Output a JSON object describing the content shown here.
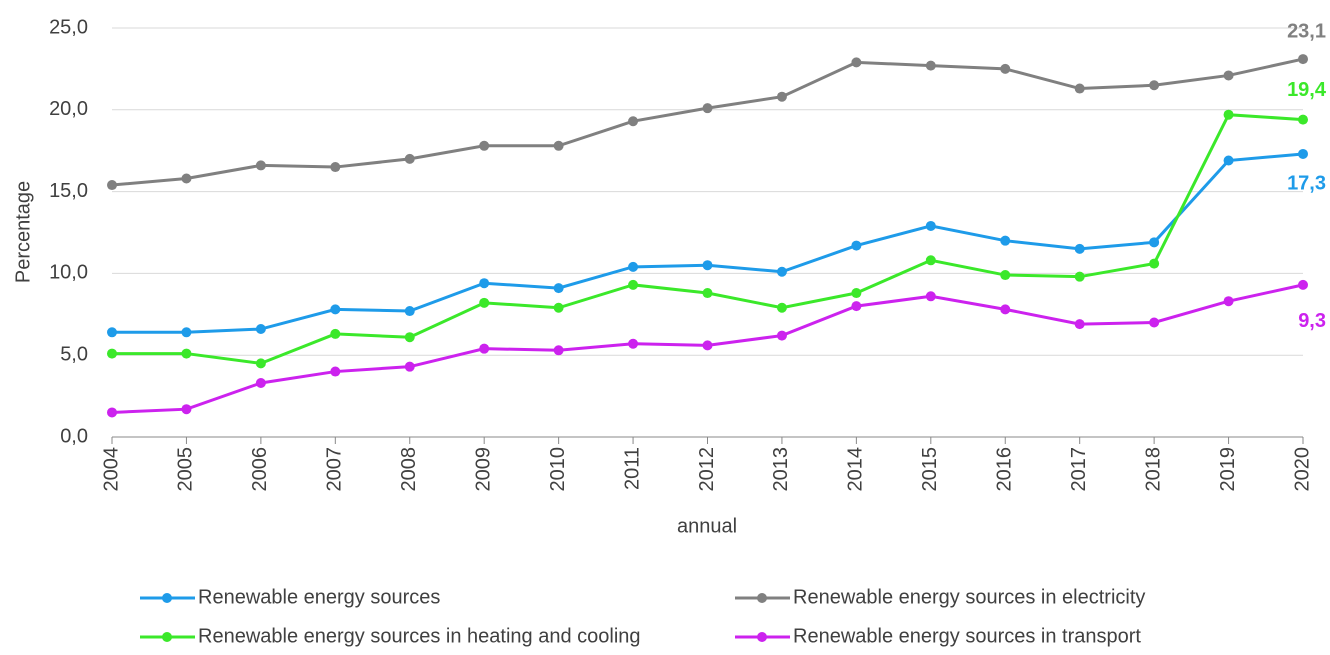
{
  "chart_data": {
    "type": "line",
    "x_label": "annual",
    "y_label": "Percentage",
    "categories": [
      "2004",
      "2005",
      "2006",
      "2007",
      "2008",
      "2009",
      "2010",
      "2011",
      "2012",
      "2013",
      "2014",
      "2015",
      "2016",
      "2017",
      "2018",
      "2019",
      "2020"
    ],
    "ylim": [
      0,
      25
    ],
    "yticks": [
      {
        "value": 0,
        "label": "0,0"
      },
      {
        "value": 5,
        "label": "5,0"
      },
      {
        "value": 10,
        "label": "10,0"
      },
      {
        "value": 15,
        "label": "15,0"
      },
      {
        "value": 20,
        "label": "20,0"
      },
      {
        "value": 25,
        "label": "25,0"
      }
    ],
    "grid": true,
    "series": [
      {
        "name": "Renewable energy sources",
        "color": "#1e9be9",
        "values": [
          6.4,
          6.4,
          6.6,
          7.8,
          7.7,
          9.4,
          9.1,
          10.4,
          10.5,
          10.1,
          11.7,
          12.9,
          12.0,
          11.5,
          11.9,
          16.9,
          17.3
        ],
        "value_labels": [
          null,
          null,
          null,
          null,
          null,
          null,
          null,
          null,
          null,
          null,
          null,
          null,
          null,
          null,
          null,
          null,
          "17,3"
        ]
      },
      {
        "name": "Renewable energy sources in electricity",
        "color": "#808080",
        "values": [
          15.4,
          15.8,
          16.6,
          16.5,
          17.0,
          17.8,
          17.8,
          19.3,
          20.1,
          20.8,
          22.9,
          22.7,
          22.5,
          21.3,
          21.5,
          22.1,
          23.1
        ],
        "value_labels": [
          null,
          null,
          null,
          null,
          null,
          null,
          null,
          null,
          null,
          null,
          null,
          null,
          null,
          null,
          null,
          null,
          "23,1"
        ]
      },
      {
        "name": "Renewable energy sources in heating and cooling",
        "color": "#3be82a",
        "values": [
          5.1,
          5.1,
          4.5,
          6.3,
          6.1,
          8.2,
          7.9,
          9.3,
          8.8,
          7.9,
          8.8,
          10.8,
          9.9,
          9.8,
          10.6,
          19.7,
          19.4
        ],
        "value_labels": [
          null,
          null,
          null,
          null,
          null,
          null,
          null,
          null,
          null,
          null,
          null,
          null,
          null,
          null,
          null,
          null,
          "19,4"
        ]
      },
      {
        "name": "Renewable energy sources in transport",
        "color": "#cc22ee",
        "values": [
          1.5,
          1.7,
          3.3,
          4.0,
          4.3,
          5.4,
          5.3,
          5.7,
          5.6,
          6.2,
          8.0,
          8.6,
          7.8,
          6.9,
          7.0,
          8.3,
          9.3
        ],
        "value_labels": [
          null,
          null,
          null,
          null,
          null,
          null,
          null,
          null,
          null,
          null,
          null,
          null,
          null,
          null,
          null,
          null,
          "9,3"
        ]
      }
    ]
  }
}
